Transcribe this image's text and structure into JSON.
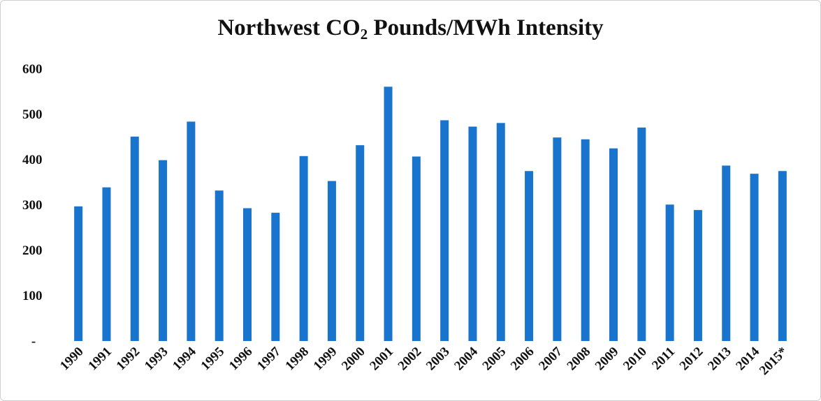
{
  "chart_data": {
    "type": "bar",
    "title": {
      "pre": "Northwest CO",
      "sub": "2",
      "post": " Pounds/MWh Intensity"
    },
    "categories": [
      "1990",
      "1991",
      "1992",
      "1993",
      "1994",
      "1995",
      "1996",
      "1997",
      "1998",
      "1999",
      "2000",
      "2001",
      "2002",
      "2003",
      "2004",
      "2005",
      "2006",
      "2007",
      "2008",
      "2009",
      "2010",
      "2011",
      "2012",
      "2013",
      "2014",
      "2015*"
    ],
    "values": [
      297,
      339,
      451,
      399,
      484,
      332,
      293,
      283,
      408,
      353,
      432,
      561,
      407,
      487,
      473,
      481,
      375,
      449,
      445,
      425,
      471,
      301,
      289,
      387,
      369,
      375
    ],
    "ylim": [
      0,
      600
    ],
    "yticks": [
      "-",
      "100",
      "200",
      "300",
      "400",
      "500",
      "600"
    ],
    "grid": false,
    "legend": "none",
    "bar_color": "#1874cd"
  }
}
